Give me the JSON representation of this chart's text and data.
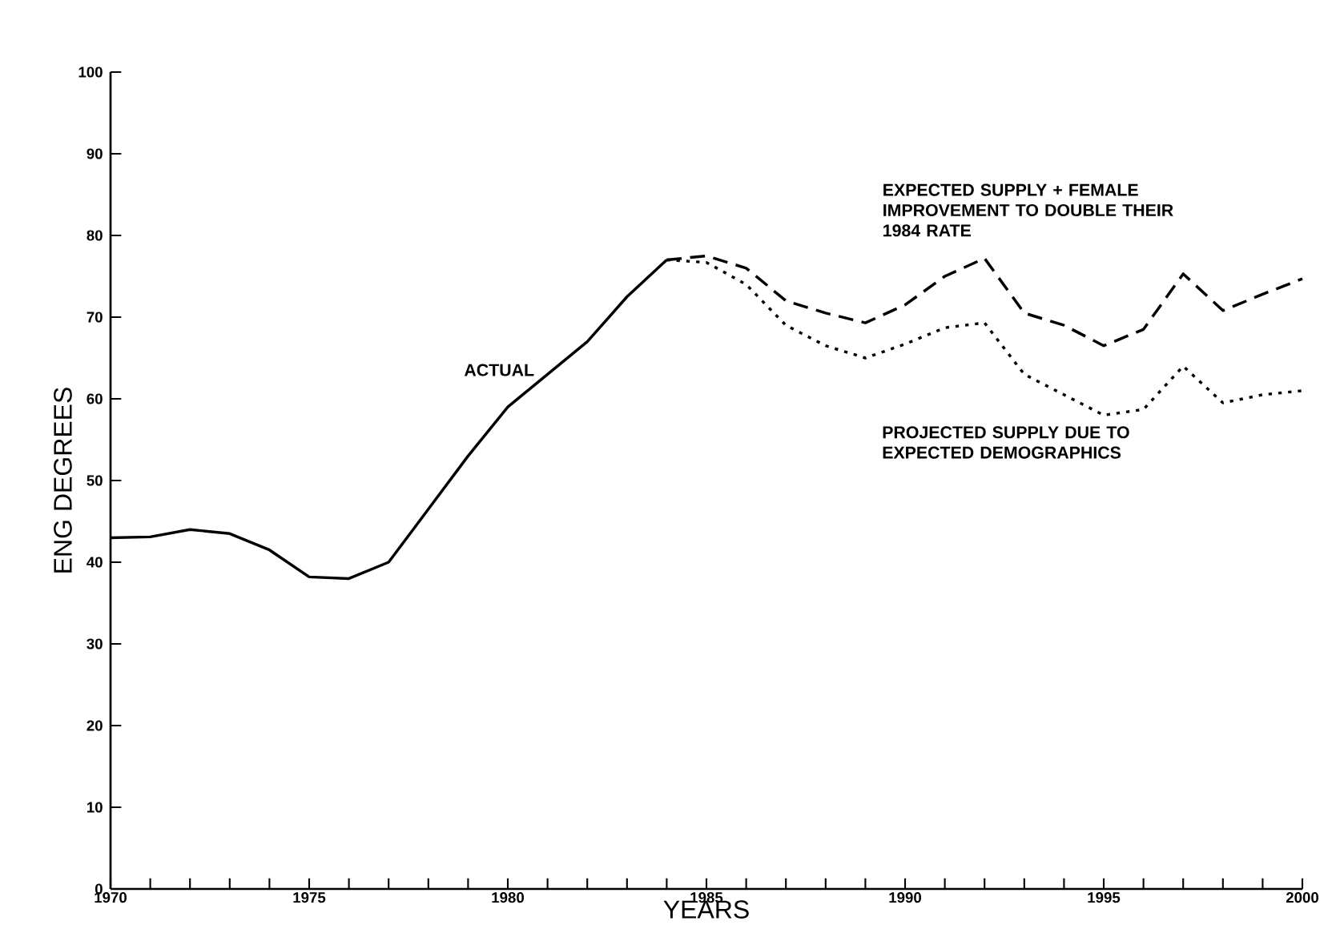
{
  "chart_data": {
    "type": "line",
    "xlabel": "YEARS",
    "ylabel": "ENG DEGREES",
    "xlim": [
      1970,
      2000
    ],
    "ylim": [
      0,
      100
    ],
    "xticks": [
      1970,
      {
        "value": 1971,
        "label": null
      },
      {
        "value": 1972,
        "label": null
      },
      {
        "value": 1973,
        "label": null
      },
      {
        "value": 1974,
        "label": null
      },
      1975,
      {
        "value": 1976,
        "label": null
      },
      {
        "value": 1977,
        "label": null
      },
      {
        "value": 1978,
        "label": null
      },
      {
        "value": 1979,
        "label": null
      },
      1980,
      {
        "value": 1981,
        "label": null
      },
      {
        "value": 1982,
        "label": null
      },
      {
        "value": 1983,
        "label": null
      },
      {
        "value": 1984,
        "label": null
      },
      1985,
      {
        "value": 1986,
        "label": null
      },
      {
        "value": 1987,
        "label": null
      },
      {
        "value": 1988,
        "label": null
      },
      {
        "value": 1989,
        "label": null
      },
      1990,
      {
        "value": 1991,
        "label": null
      },
      {
        "value": 1992,
        "label": null
      },
      {
        "value": 1993,
        "label": null
      },
      {
        "value": 1994,
        "label": null
      },
      1995,
      {
        "value": 1996,
        "label": null
      },
      {
        "value": 1997,
        "label": null
      },
      {
        "value": 1998,
        "label": null
      },
      {
        "value": 1999,
        "label": null
      },
      2000
    ],
    "yticks": [
      0,
      10,
      20,
      30,
      40,
      50,
      60,
      70,
      80,
      90,
      100
    ],
    "grid": false,
    "legend": false,
    "marker": "none",
    "series": [
      {
        "name": "ACTUAL",
        "color": "#000000",
        "line_style": "solid",
        "x": [
          1970,
          1971,
          1972,
          1973,
          1974,
          1975,
          1976,
          1977,
          1978,
          1979,
          1980,
          1981,
          1982,
          1983,
          1984
        ],
        "values": [
          43,
          43.1,
          44,
          43.5,
          41.5,
          38.2,
          38,
          40,
          46.5,
          53,
          59,
          63,
          67,
          72.5,
          77
        ]
      },
      {
        "name": "EXPECTED SUPPLY + FEMALE IMPROVEMENT TO DOUBLE THEIR 1984 RATE",
        "color": "#000000",
        "line_style": "dashed",
        "x": [
          1984,
          1985,
          1986,
          1987,
          1988,
          1989,
          1990,
          1991,
          1992,
          1993,
          1994,
          1995,
          1996,
          1997,
          1998,
          1999,
          2000
        ],
        "values": [
          77,
          77.5,
          76,
          72,
          70.5,
          69.3,
          71.5,
          75,
          77.2,
          70.5,
          69,
          66.5,
          68.5,
          75.3,
          70.8,
          72.8,
          74.7
        ]
      },
      {
        "name": "PROJECTED SUPPLY DUE TO EXPECTED DEMOGRAPHICS",
        "color": "#000000",
        "line_style": "dotted",
        "x": [
          1984,
          1985,
          1986,
          1987,
          1988,
          1989,
          1990,
          1991,
          1992,
          1993,
          1994,
          1995,
          1996,
          1997,
          1998,
          1999,
          2000
        ],
        "values": [
          77,
          76.7,
          74,
          69,
          66.5,
          65,
          66.7,
          68.7,
          69.3,
          63,
          60.5,
          58,
          58.7,
          64,
          59.5,
          60.5,
          61
        ]
      }
    ]
  }
}
